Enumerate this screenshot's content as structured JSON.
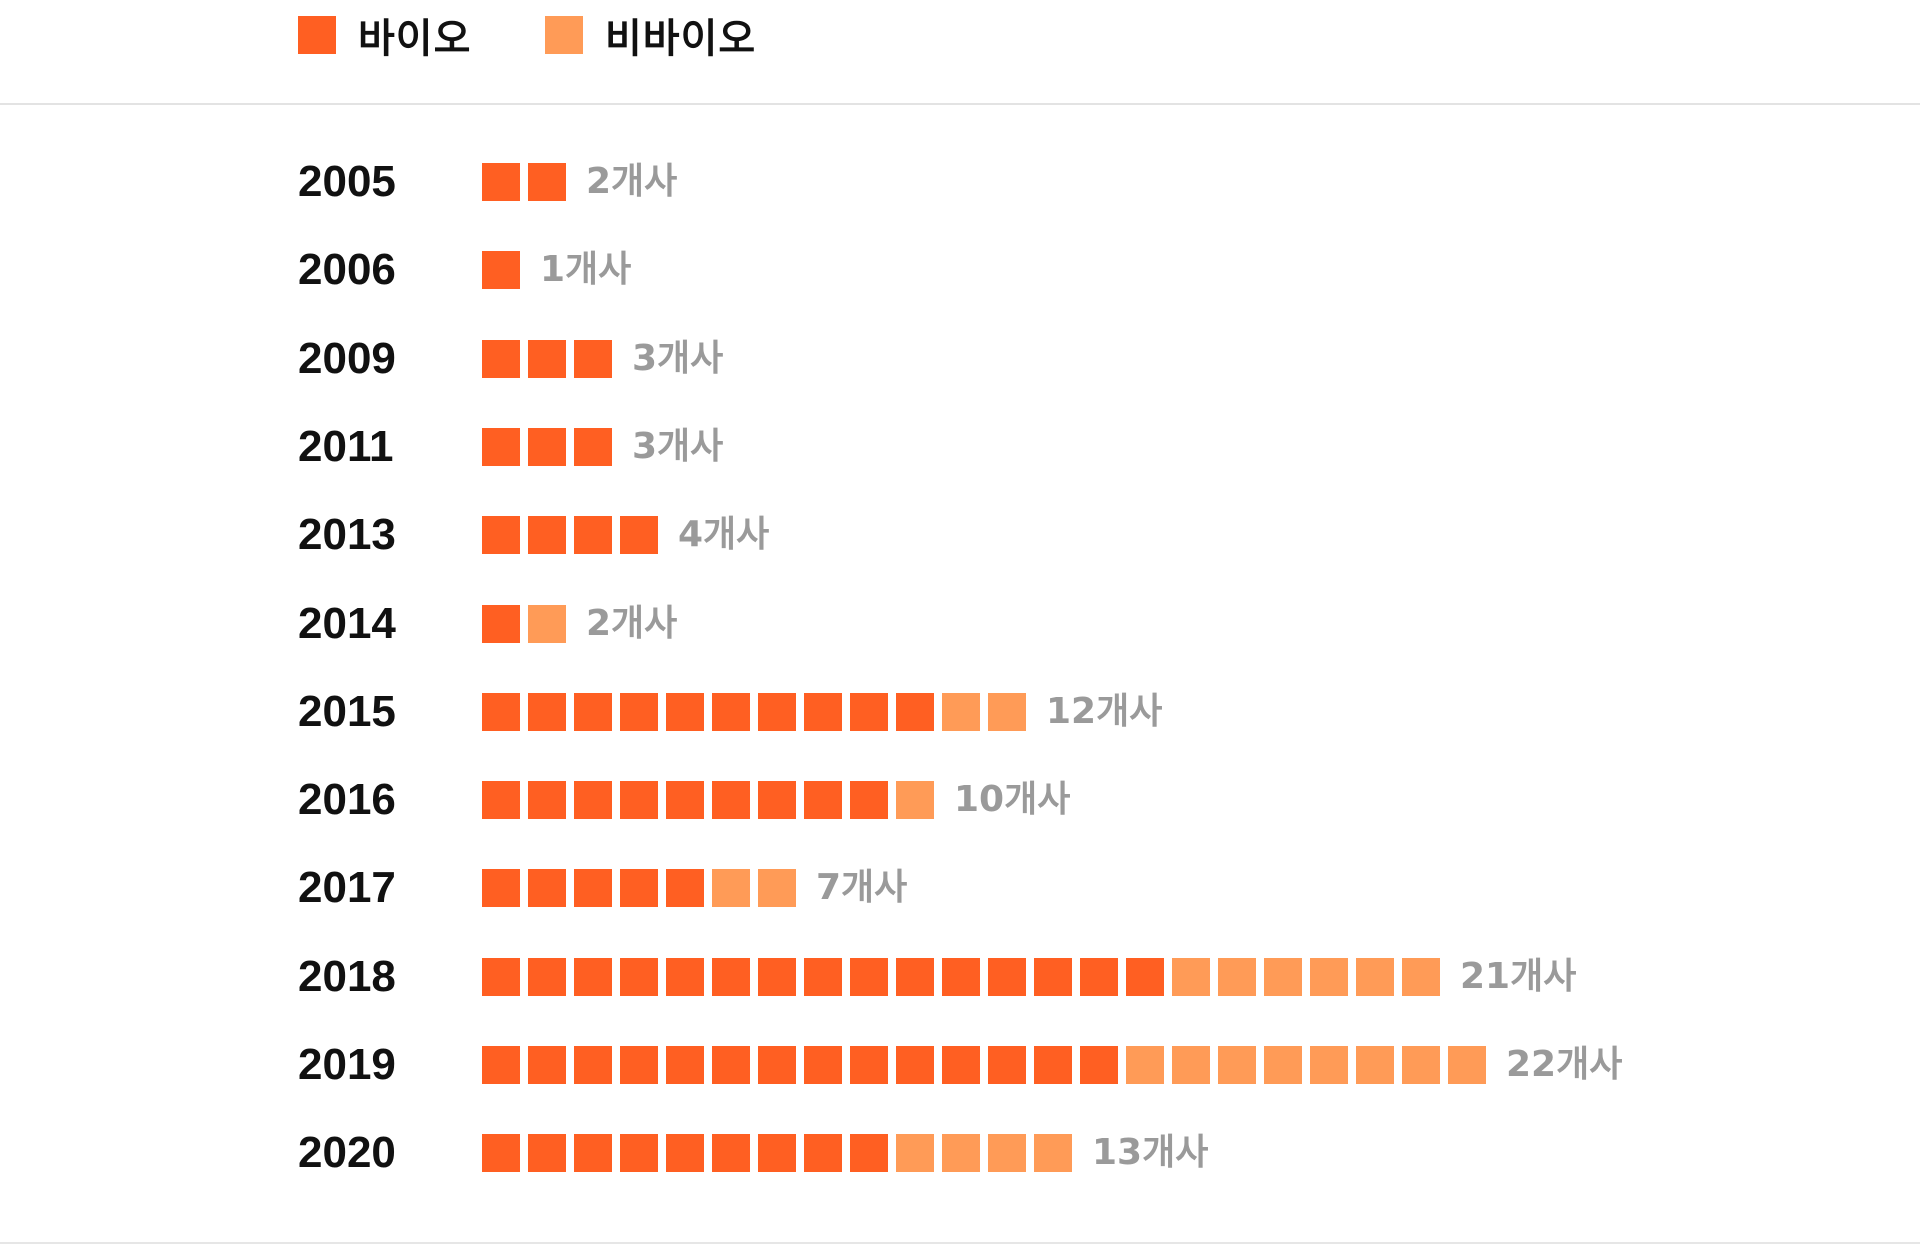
{
  "legend": {
    "bio_label": "바이오",
    "nonbio_label": "비바이오"
  },
  "colors": {
    "bio": "#ff5f22",
    "nonbio": "#ff9b57",
    "count_text": "#9a9a9a"
  },
  "chart_data": {
    "type": "bar",
    "series": [
      {
        "name": "바이오",
        "values": [
          2,
          1,
          3,
          3,
          4,
          1,
          10,
          9,
          5,
          15,
          14,
          9
        ]
      },
      {
        "name": "비바이오",
        "values": [
          0,
          0,
          0,
          0,
          0,
          1,
          2,
          1,
          2,
          6,
          8,
          4
        ]
      }
    ],
    "rows": [
      {
        "year": "2005",
        "bio": 2,
        "nonbio": 0,
        "label": "2개사"
      },
      {
        "year": "2006",
        "bio": 1,
        "nonbio": 0,
        "label": "1개사"
      },
      {
        "year": "2009",
        "bio": 3,
        "nonbio": 0,
        "label": "3개사"
      },
      {
        "year": "2011",
        "bio": 3,
        "nonbio": 0,
        "label": "3개사"
      },
      {
        "year": "2013",
        "bio": 4,
        "nonbio": 0,
        "label": "4개사"
      },
      {
        "year": "2014",
        "bio": 1,
        "nonbio": 1,
        "label": "2개사"
      },
      {
        "year": "2015",
        "bio": 10,
        "nonbio": 2,
        "label": "12개사"
      },
      {
        "year": "2016",
        "bio": 9,
        "nonbio": 1,
        "label": "10개사"
      },
      {
        "year": "2017",
        "bio": 5,
        "nonbio": 2,
        "label": "7개사"
      },
      {
        "year": "2018",
        "bio": 15,
        "nonbio": 6,
        "label": "21개사"
      },
      {
        "year": "2019",
        "bio": 14,
        "nonbio": 8,
        "label": "22개사"
      },
      {
        "year": "2020",
        "bio": 9,
        "nonbio": 4,
        "label": "13개사"
      }
    ]
  }
}
